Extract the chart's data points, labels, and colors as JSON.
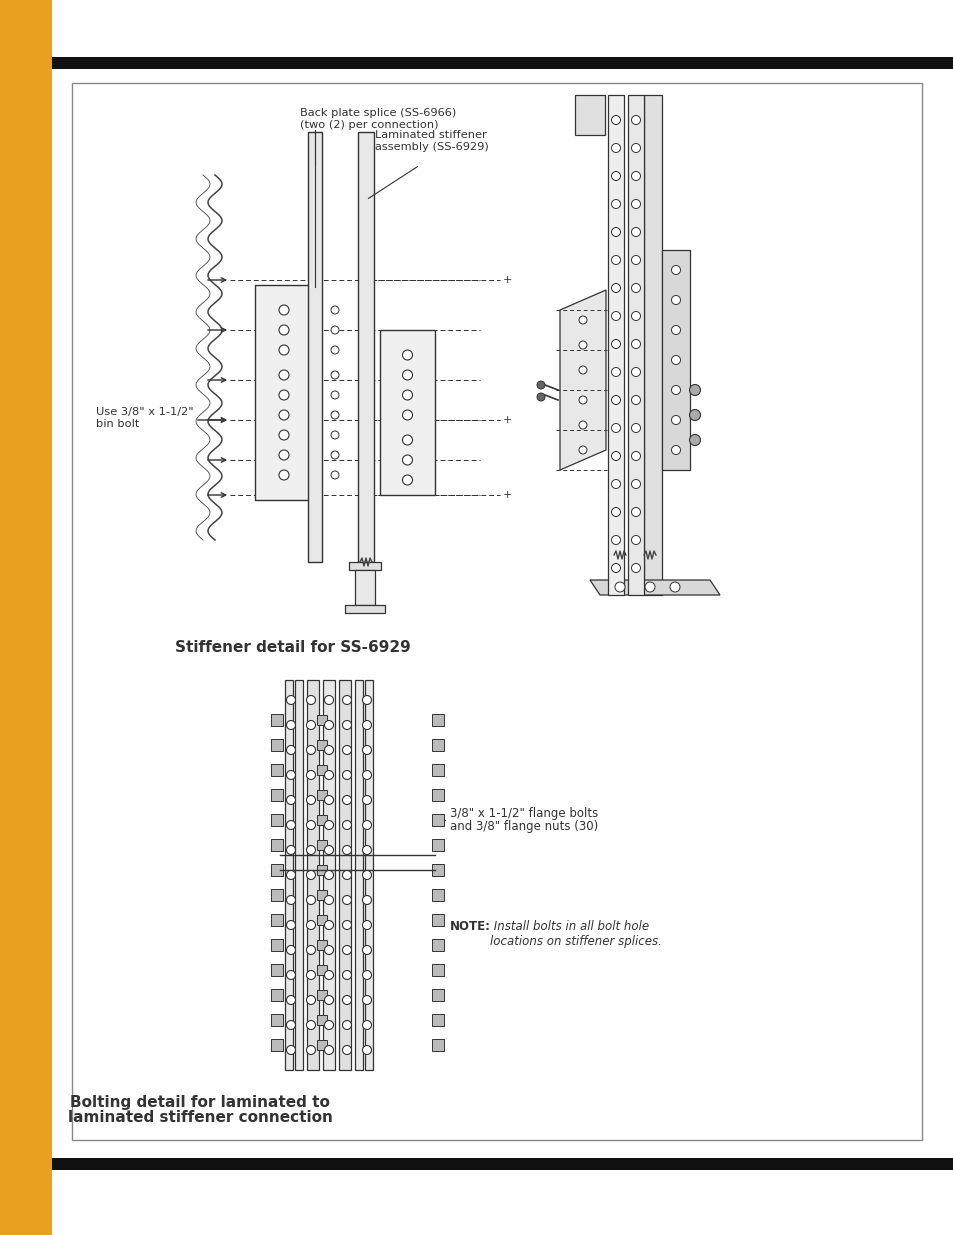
{
  "page_bg": "#ffffff",
  "sidebar_color": "#E8A020",
  "top_bar_color": "#111111",
  "content_border_color": "#888888",
  "draw_color": "#333333",
  "label1_line1": "Back plate splice (SS-6966)",
  "label1_line2": "(two (2) per connection)",
  "label2_line1": "Laminated stiffener",
  "label2_line2": "assembly (SS-6929)",
  "label3_line1": "Use 3/8\" x 1-1/2\"",
  "label3_line2": "bin bolt",
  "caption1": "Stiffener detail for SS-6929",
  "label4_line1": "3/8\" x 1-1/2\" flange bolts",
  "label4_line2": "and 3/8\" flange nuts (30)",
  "note_bold": "NOTE:",
  "note_rest": " Install bolts in all bolt hole\nlocations on stiffener splices.",
  "caption2_line1": "Bolting detail for laminated to",
  "caption2_line2": "laminated stiffener connection"
}
